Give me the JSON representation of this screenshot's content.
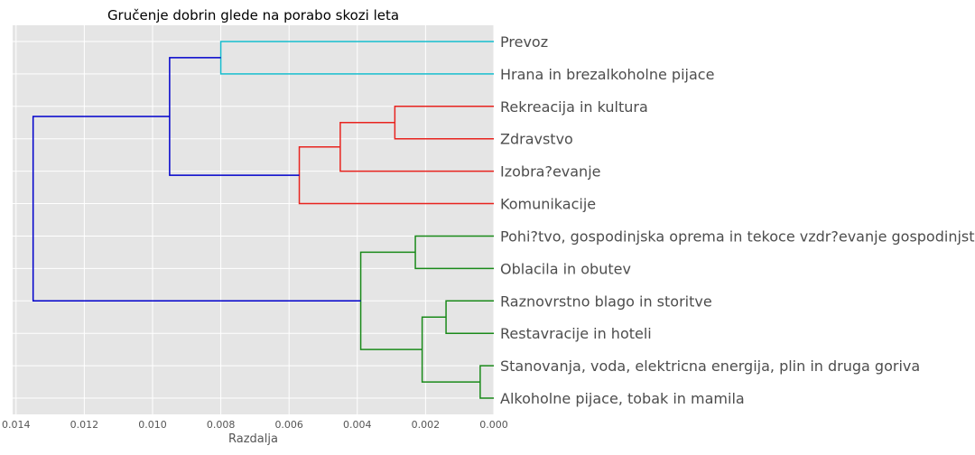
{
  "chart_data": {
    "type": "dendrogram",
    "title": "Gručenje dobrin glede na porabo skozi leta",
    "xlabel": "Razdalja",
    "xlim": [
      0.0141,
      0.0
    ],
    "xticks": [
      "0.014",
      "0.012",
      "0.010",
      "0.008",
      "0.006",
      "0.004",
      "0.002",
      "0.000"
    ],
    "xtick_values": [
      0.014,
      0.012,
      0.01,
      0.008,
      0.006,
      0.004,
      0.002,
      0.0
    ],
    "orientation": "left",
    "grid": true,
    "leaves": [
      "Prevoz",
      "Hrana in brezalkoholne pijace",
      "Rekreacija in kultura",
      "Zdravstvo",
      "Izobra?evanje",
      "Komunikacije",
      "Pohi?tvo, gospodinjska oprema in tekoce vzdr?evanje gospodinjstev",
      "Oblacila in obutev",
      "Raznovrstno blago in storitve",
      "Restavracije in hoteli",
      "Stanovanja, voda, elektricna energija, plin in druga goriva",
      "Alkoholne pijace, tobak in mamila"
    ],
    "merges": [
      {
        "id": "c0",
        "left": "L0",
        "right": "L1",
        "height": 0.008,
        "color": "#17becf"
      },
      {
        "id": "c1",
        "left": "L2",
        "right": "L3",
        "height": 0.0029,
        "color": "#e8231e"
      },
      {
        "id": "c2",
        "left": "c1",
        "right": "L4",
        "height": 0.0045,
        "color": "#e8231e"
      },
      {
        "id": "c3",
        "left": "c2",
        "right": "L5",
        "height": 0.0057,
        "color": "#e8231e"
      },
      {
        "id": "c4",
        "left": "c0",
        "right": "c3",
        "height": 0.0095,
        "color": "#0000cc"
      },
      {
        "id": "c5",
        "left": "L6",
        "right": "L7",
        "height": 0.0023,
        "color": "#1a8a1a"
      },
      {
        "id": "c6",
        "left": "L8",
        "right": "L9",
        "height": 0.0014,
        "color": "#1a8a1a"
      },
      {
        "id": "c7",
        "left": "L10",
        "right": "L11",
        "height": 0.0004,
        "color": "#1a8a1a"
      },
      {
        "id": "c8",
        "left": "c6",
        "right": "c7",
        "height": 0.0021,
        "color": "#1a8a1a"
      },
      {
        "id": "c9",
        "left": "c5",
        "right": "c8",
        "height": 0.0039,
        "color": "#1a8a1a"
      },
      {
        "id": "c10",
        "left": "c4",
        "right": "c9",
        "height": 0.0135,
        "color": "#0000cc"
      }
    ],
    "colors": {
      "background": "#e5e5e5",
      "grid": "#ffffff"
    }
  }
}
